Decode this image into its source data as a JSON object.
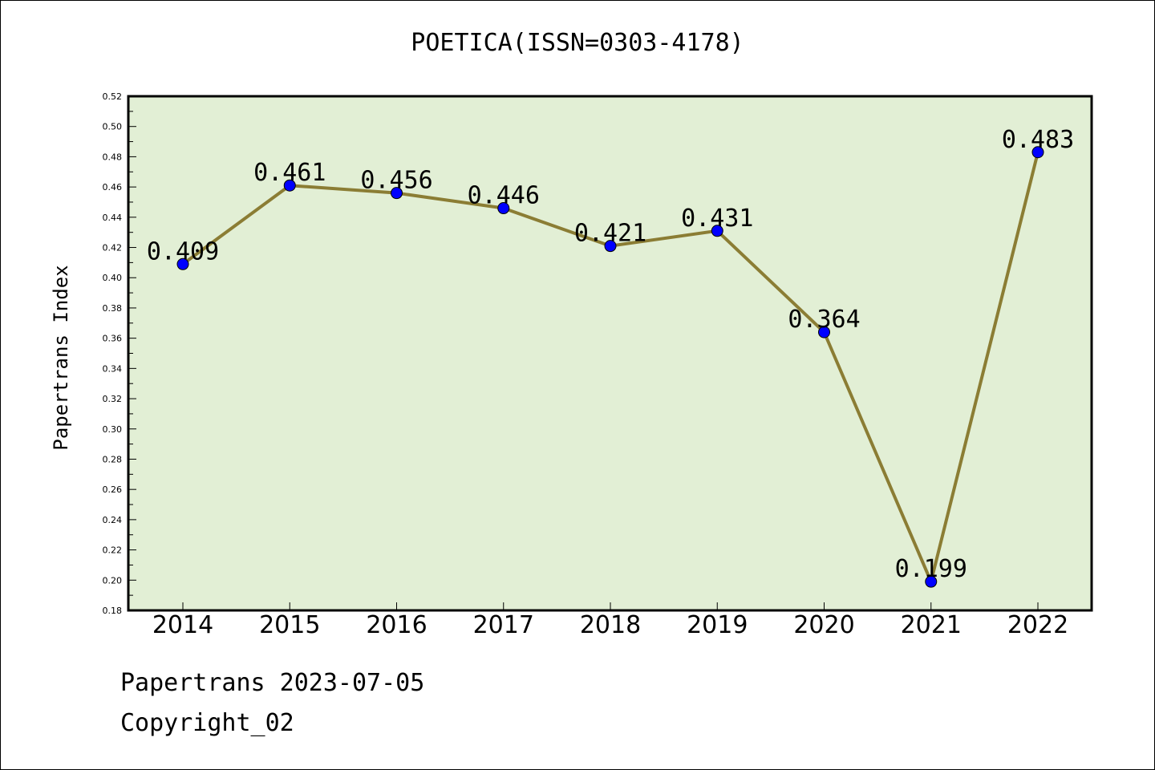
{
  "title": "POETICA(ISSN=0303-4178)",
  "footer": {
    "line1": "Papertrans 2023-07-05",
    "line2": "Copyright_02"
  },
  "colors": {
    "plot_background": "#e2efd5",
    "line": "#8b7d34",
    "marker": "#0000ff"
  },
  "chart_data": {
    "type": "line",
    "title": "POETICA(ISSN=0303-4178)",
    "xlabel": "",
    "ylabel": "Papertrans Index",
    "categories": [
      "2014",
      "2015",
      "2016",
      "2017",
      "2018",
      "2019",
      "2020",
      "2021",
      "2022"
    ],
    "series": [
      {
        "values": [
          0.409,
          0.461,
          0.456,
          0.446,
          0.421,
          0.431,
          0.364,
          0.199,
          0.483
        ],
        "labels": [
          "0.409",
          "0.461",
          "0.456",
          "0.446",
          "0.421",
          "0.431",
          "0.364",
          "0.199",
          "0.483"
        ]
      }
    ],
    "ylim": [
      0.18,
      0.52
    ],
    "yticks": [
      "0.18",
      "0.20",
      "0.22",
      "0.24",
      "0.26",
      "0.28",
      "0.30",
      "0.32",
      "0.34",
      "0.36",
      "0.38",
      "0.40",
      "0.42",
      "0.44",
      "0.46",
      "0.48",
      "0.50",
      "0.52"
    ],
    "grid": false,
    "legend": "none"
  }
}
